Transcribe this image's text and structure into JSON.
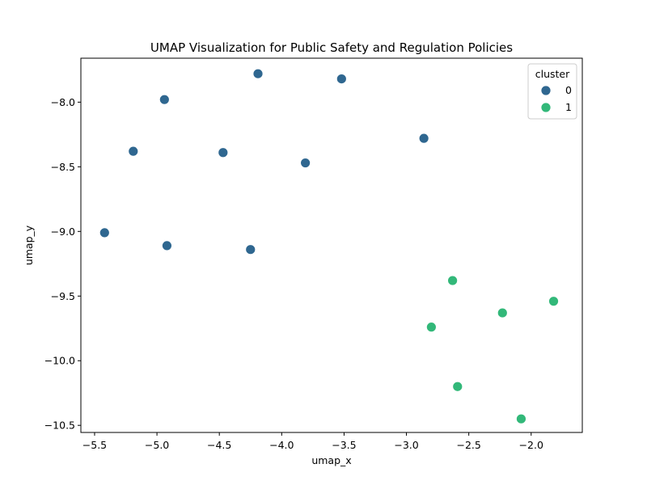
{
  "chart_data": {
    "type": "scatter",
    "title": "UMAP Visualization for Public Safety and Regulation Policies",
    "xlabel": "umap_x",
    "ylabel": "umap_y",
    "xlim": [
      -5.61,
      -1.59
    ],
    "ylim": [
      -10.555,
      -7.66
    ],
    "xticks": [
      -5.5,
      -5.0,
      -4.5,
      -4.0,
      -3.5,
      -3.0,
      -2.5,
      -2.0
    ],
    "xtick_labels": [
      "−5.5",
      "−5.0",
      "−4.5",
      "−4.0",
      "−3.5",
      "−3.0",
      "−2.5",
      "−2.0"
    ],
    "yticks": [
      -8.0,
      -8.5,
      -9.0,
      -9.5,
      -10.0,
      -10.5
    ],
    "ytick_labels": [
      "−8.0",
      "−8.5",
      "−9.0",
      "−9.5",
      "−10.0",
      "−10.5"
    ],
    "grid": false,
    "legend": {
      "title": "cluster",
      "placement": "top-right",
      "entries": [
        {
          "label": "0",
          "color": "#2f6790"
        },
        {
          "label": "1",
          "color": "#32b879"
        }
      ]
    },
    "series": [
      {
        "name": "0",
        "color": "#2f6790",
        "points": [
          {
            "x": -4.19,
            "y": -7.78
          },
          {
            "x": -3.52,
            "y": -7.82
          },
          {
            "x": -4.94,
            "y": -7.98
          },
          {
            "x": -2.86,
            "y": -8.28
          },
          {
            "x": -5.19,
            "y": -8.38
          },
          {
            "x": -4.47,
            "y": -8.39
          },
          {
            "x": -3.81,
            "y": -8.47
          },
          {
            "x": -5.42,
            "y": -9.01
          },
          {
            "x": -4.92,
            "y": -9.11
          },
          {
            "x": -4.25,
            "y": -9.14
          }
        ]
      },
      {
        "name": "1",
        "color": "#32b879",
        "points": [
          {
            "x": -2.63,
            "y": -9.38
          },
          {
            "x": -1.82,
            "y": -9.54
          },
          {
            "x": -2.23,
            "y": -9.63
          },
          {
            "x": -2.8,
            "y": -9.74
          },
          {
            "x": -2.59,
            "y": -10.2
          },
          {
            "x": -2.08,
            "y": -10.45
          }
        ]
      }
    ]
  }
}
